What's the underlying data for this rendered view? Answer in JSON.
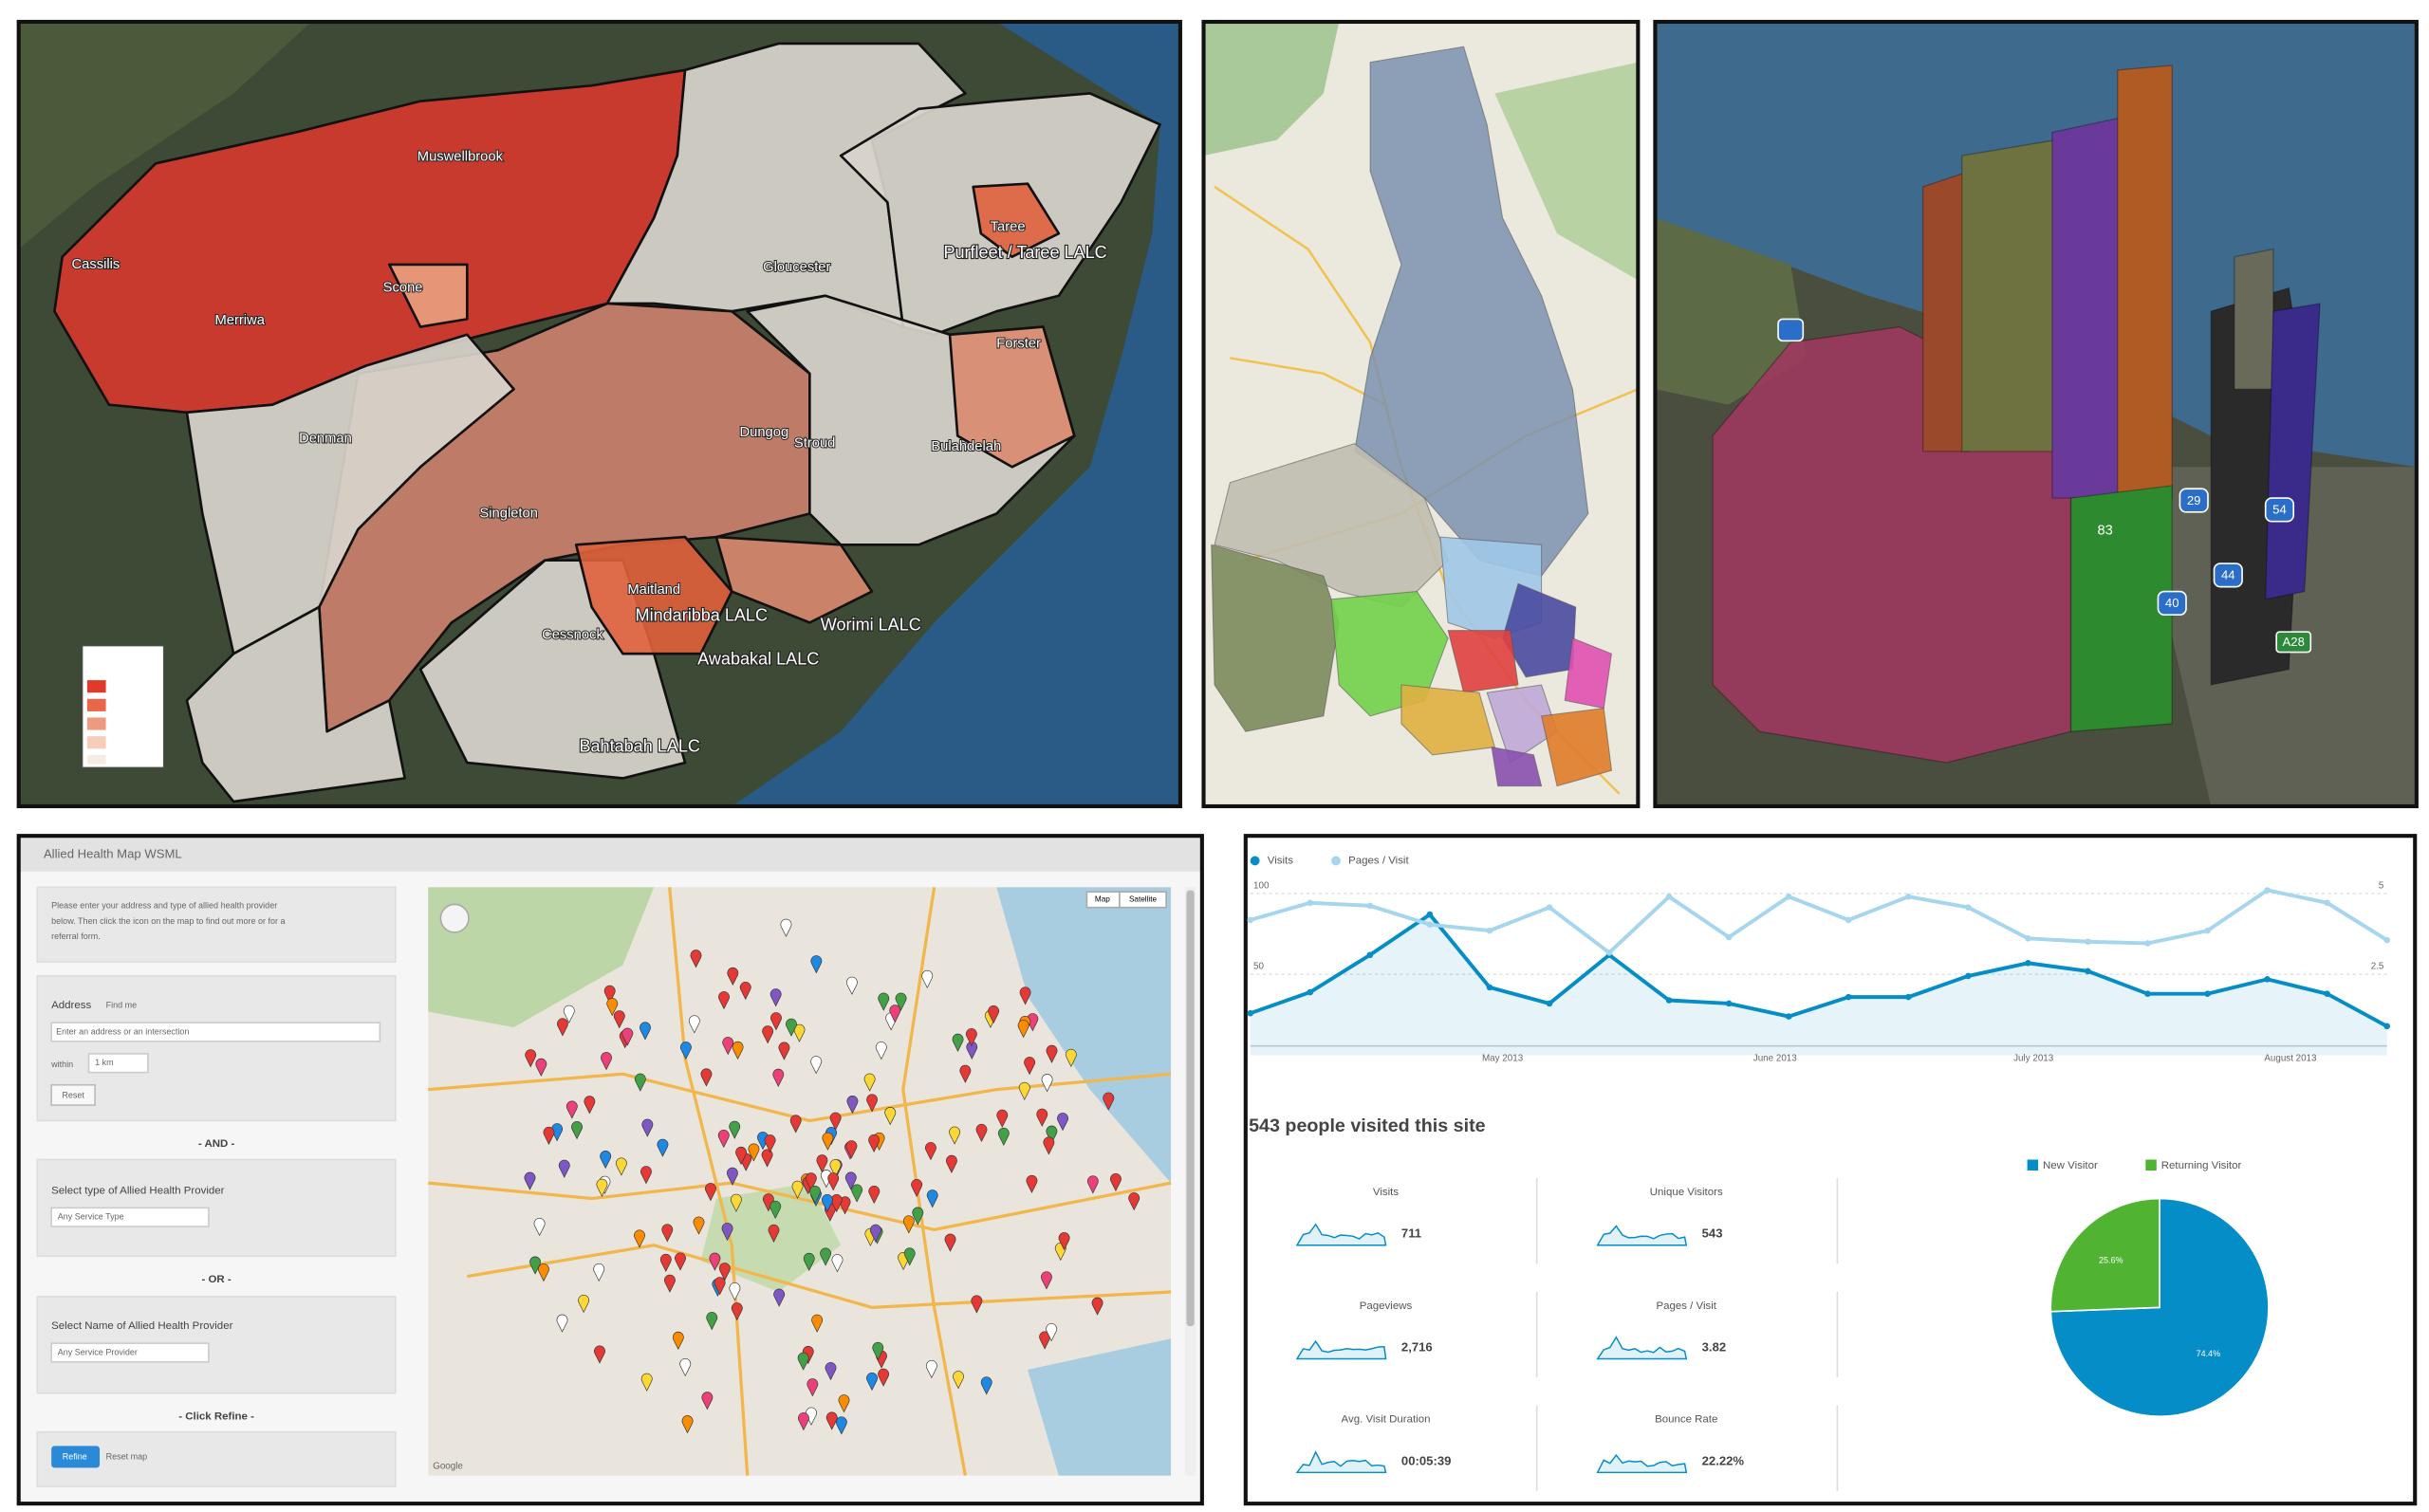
{
  "regions_map": {
    "labels": [
      "Muswellbrook",
      "Cassilis",
      "Merriwa",
      "Scone",
      "Gloucester",
      "Taree",
      "Purfleet / Taree LALC",
      "Forster",
      "Denman",
      "Dungog",
      "Stroud",
      "Bulahdelah",
      "Singleton",
      "Maitland",
      "Mindaribba LALC",
      "Worimi LALC",
      "Cessnock",
      "Awabakal LALC",
      "Bahtabah LALC"
    ]
  },
  "columns_map": {
    "labels": [
      "83",
      "29",
      "54",
      "44",
      "40",
      "A28"
    ]
  },
  "allied_health": {
    "title": "Allied Health Map WSML",
    "instructions": [
      "Please enter your address and type of allied health provider",
      "below. Then click the icon on the map to find out more or for a",
      "referral form."
    ],
    "address_label": "Address",
    "find_me": "Find me",
    "address_placeholder": "Enter an address or an intersection",
    "within": "within",
    "distance": "1 km",
    "reset": "Reset",
    "and": "- AND -",
    "type_label": "Select type of Allied Health Provider",
    "type_select": "Any Service Type",
    "or": "- OR -",
    "name_label": "Select Name of Allied Health Provider",
    "name_select": "Any Service Provider",
    "click_refine": "- Click Refine -",
    "refine": "Refine",
    "reset_map": "Reset map",
    "map_button": "Map",
    "satellite_button": "Satellite",
    "google": "Google"
  },
  "analytics": {
    "chart": {
      "type": "line",
      "series": [
        {
          "name": "Visits",
          "color": "#058dc7",
          "values": [
            26,
            39,
            62,
            87,
            42,
            32,
            62,
            34,
            32,
            24,
            36,
            36,
            49,
            57,
            52,
            38,
            38,
            47,
            38,
            18
          ]
        },
        {
          "name": "Pages / Visit",
          "color": "#a6d5ee",
          "axis": "y2",
          "values": [
            4.18,
            4.71,
            4.62,
            4.04,
            3.85,
            4.57,
            3.17,
            4.9,
            3.65,
            4.9,
            4.18,
            4.9,
            4.57,
            3.61,
            3.51,
            3.46,
            3.85,
            5.1,
            4.71,
            3.56
          ]
        }
      ],
      "ylim": [
        0,
        100
      ],
      "yticks": [
        50,
        100
      ],
      "y2lim": [
        0,
        5
      ],
      "y2ticks": [
        2.5,
        5
      ],
      "x_labels": [
        "May 2013",
        "June 2013",
        "July 2013",
        "August 2013"
      ]
    },
    "headline": "543 people visited this site",
    "metrics": [
      {
        "label": "Visits",
        "value": "711"
      },
      {
        "label": "Unique Visitors",
        "value": "543"
      },
      {
        "label": "Pageviews",
        "value": "2,716"
      },
      {
        "label": "Pages / Visit",
        "value": "3.82"
      },
      {
        "label": "Avg. Visit Duration",
        "value": "00:05:39"
      },
      {
        "label": "Bounce Rate",
        "value": "22.22%"
      }
    ],
    "pie": {
      "type": "pie",
      "categories": [
        "New Visitor",
        "Returning Visitor"
      ],
      "values": [
        74.4,
        25.6
      ],
      "value_labels": [
        "74.4%",
        "25.6%"
      ],
      "colors": [
        "#058dc7",
        "#50b432"
      ]
    }
  }
}
